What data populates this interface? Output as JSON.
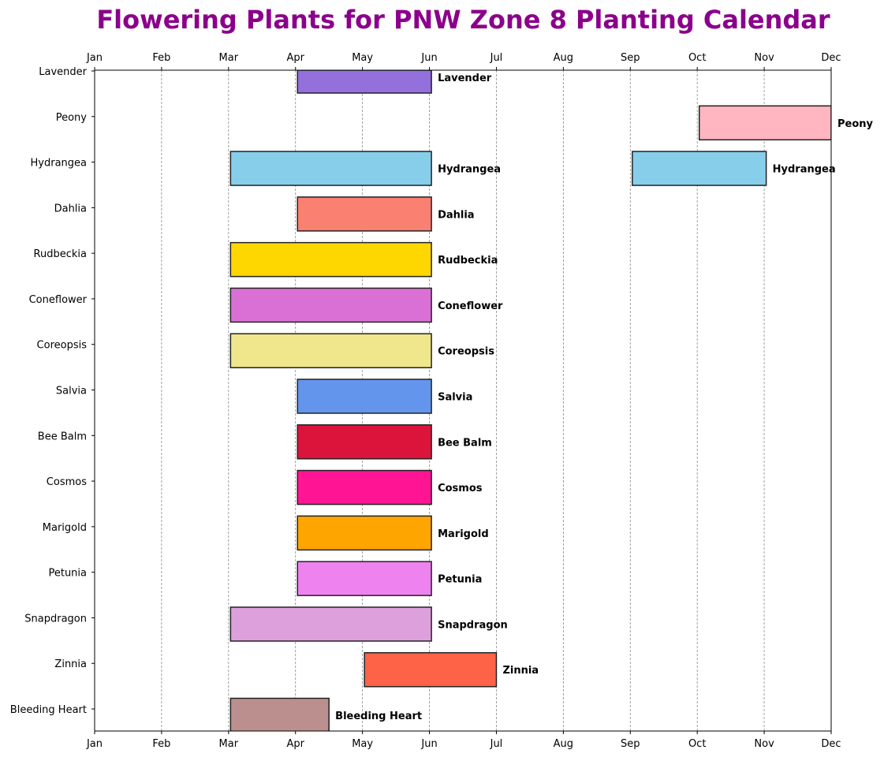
{
  "chart_data": {
    "type": "bar",
    "subtype": "horizontal-gantt",
    "title": "Flowering Plants for PNW Zone 8 Planting Calendar",
    "title_color": "#8B008B",
    "xlabel": "",
    "ylabel": "",
    "x_ticks": [
      "Jan",
      "Feb",
      "Mar",
      "Apr",
      "May",
      "Jun",
      "Jul",
      "Aug",
      "Sep",
      "Oct",
      "Nov",
      "Dec"
    ],
    "x_ticks_top_and_bottom": true,
    "xlim": [
      0,
      11
    ],
    "grid": "vertical dashed gray",
    "categories": [
      "Lavender",
      "Peony",
      "Hydrangea",
      "Dahlia",
      "Rudbeckia",
      "Coneflower",
      "Coreopsis",
      "Salvia",
      "Bee Balm",
      "Cosmos",
      "Marigold",
      "Petunia",
      "Snapdragon",
      "Zinnia",
      "Bleeding Heart"
    ],
    "series": [
      {
        "name": "Lavender",
        "color": "#9370DB",
        "spans": [
          [
            3.03,
            5.03
          ]
        ]
      },
      {
        "name": "Peony",
        "color": "#FFB6C1",
        "spans": [
          [
            9.03,
            11.0
          ]
        ]
      },
      {
        "name": "Hydrangea",
        "color": "#87CEEB",
        "spans": [
          [
            2.03,
            5.03
          ],
          [
            8.03,
            10.03
          ]
        ]
      },
      {
        "name": "Dahlia",
        "color": "#FA8072",
        "spans": [
          [
            3.03,
            5.03
          ]
        ]
      },
      {
        "name": "Rudbeckia",
        "color": "#FFD700",
        "spans": [
          [
            2.03,
            5.03
          ]
        ]
      },
      {
        "name": "Coneflower",
        "color": "#DA70D6",
        "spans": [
          [
            2.03,
            5.03
          ]
        ]
      },
      {
        "name": "Coreopsis",
        "color": "#F0E68C",
        "spans": [
          [
            2.03,
            5.03
          ]
        ]
      },
      {
        "name": "Salvia",
        "color": "#6495ED",
        "spans": [
          [
            3.03,
            5.03
          ]
        ]
      },
      {
        "name": "Bee Balm",
        "color": "#DC143C",
        "spans": [
          [
            3.03,
            5.03
          ]
        ]
      },
      {
        "name": "Cosmos",
        "color": "#FF1493",
        "spans": [
          [
            3.03,
            5.03
          ]
        ]
      },
      {
        "name": "Marigold",
        "color": "#FFA500",
        "spans": [
          [
            3.03,
            5.03
          ]
        ]
      },
      {
        "name": "Petunia",
        "color": "#EE82EE",
        "spans": [
          [
            3.03,
            5.03
          ]
        ]
      },
      {
        "name": "Snapdragon",
        "color": "#DDA0DD",
        "spans": [
          [
            2.03,
            5.03
          ]
        ]
      },
      {
        "name": "Zinnia",
        "color": "#FF6347",
        "spans": [
          [
            4.03,
            6.0
          ]
        ]
      },
      {
        "name": "Bleeding Heart",
        "color": "#BC8F8F",
        "spans": [
          [
            2.03,
            3.5
          ]
        ]
      }
    ]
  }
}
